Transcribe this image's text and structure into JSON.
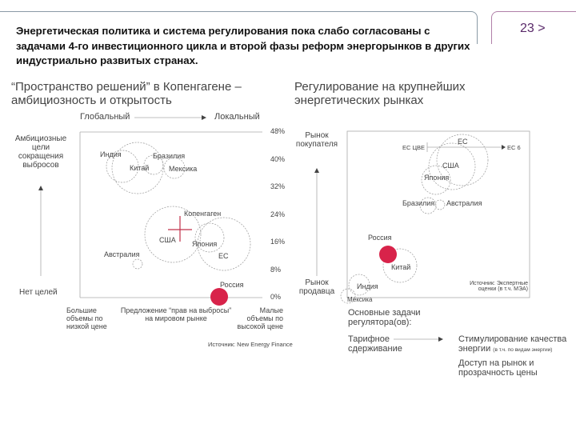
{
  "header": {
    "title": "Энергетическая политика и система регулирования пока слабо согласованы с задачами 4-го инвестиционного цикла и второй фазы реформ энергорынков в других индустриально развитых странах.",
    "page": "23 >"
  },
  "left": {
    "title": "“Пространство решений” в Копенгагене – амбициозность и открытость",
    "top_left": "Глобальный",
    "top_right": "Локальный",
    "y_top": "Амбициозные цели сокращения выбросов",
    "y_bottom": "Нет целей",
    "y_ticks": [
      "48%",
      "40%",
      "32%",
      "24%",
      "16%",
      "8%",
      "0%"
    ],
    "x_left": "Большие объемы по низкой цене",
    "x_mid": "Предложение “прав на выбросы” на мировом рынке",
    "x_right": "Малые объемы по высокой цене",
    "labels": {
      "india": "Индия",
      "china": "Китай",
      "brazil": "Бразилия",
      "mexico": "Мексика",
      "copenhagen": "Копенгаген",
      "usa": "США",
      "japan": "Япония",
      "eu": "ЕС",
      "australia": "Австралия",
      "russia": "Россия"
    },
    "source": "Источник: New Energy Finance"
  },
  "right": {
    "title": "Регулирование на крупнейших энергетических рынках",
    "y_top": "Рынок покупателя",
    "y_bottom": "Рынок продавца",
    "eu_left": "ЕС ЦВЕ",
    "eu_right": "ЕС 6",
    "labels": {
      "eu": "ЕС",
      "usa": "США",
      "japan": "Япония",
      "brazil": "Бразилия",
      "australia": "Австралия",
      "russia": "Россия",
      "china": "Китай",
      "india": "Индия",
      "mexico": "Мексика"
    },
    "source": "Источник: Экспертные оценки (в т.ч. МЭА)",
    "tasks_title": "Основные задачи регулятора(ов):",
    "task_from": "Тарифное сдерживание",
    "task_to": "Стимулирование качества энергии",
    "task_to_note": "(в т.ч. по видам энергии)",
    "task_to2": "Доступ на рынок и прозрачность цены"
  },
  "colors": {
    "accent": "#d8234a",
    "title_purple": "#5a2a6a"
  }
}
